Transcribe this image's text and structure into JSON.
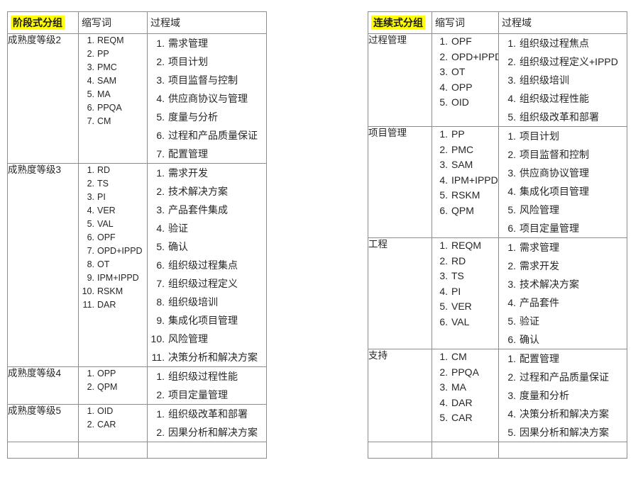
{
  "colors": {
    "highlight_bg": "#ffff00",
    "border": "#8c8c8c",
    "text": "#262626",
    "page_bg": "#ffffff"
  },
  "tables": [
    {
      "id": "staged",
      "headers": {
        "group": "阶段式分组",
        "abbr": "缩写词",
        "areas": "过程域"
      },
      "rows": [
        {
          "group": "成熟度等级2",
          "abbr": [
            "REQM",
            "PP",
            "PMC",
            "SAM",
            "MA",
            "PPQA",
            "CM"
          ],
          "areas": [
            "需求管理",
            "项目计划",
            "项目监督与控制",
            "供应商协议与管理",
            "度量与分析",
            "过程和产品质量保证",
            "配置管理"
          ]
        },
        {
          "group": "成熟度等级3",
          "abbr": [
            "RD",
            "TS",
            "PI",
            "VER",
            "VAL",
            "OPF",
            "OPD+IPPD",
            "OT",
            "IPM+IPPD",
            "RSKM",
            "DAR"
          ],
          "areas": [
            "需求开发",
            "技术解决方案",
            "产品套件集成",
            "验证",
            "确认",
            "组织级过程集点",
            "组织级过程定义",
            "组织级培训",
            "集成化项目管理",
            "风险管理",
            "决策分析和解决方案"
          ]
        },
        {
          "group": "成熟度等级4",
          "abbr": [
            "OPP",
            "QPM"
          ],
          "areas": [
            "组织级过程性能",
            "项目定量管理"
          ]
        },
        {
          "group": "成熟度等级5",
          "abbr": [
            "OID",
            "CAR"
          ],
          "areas": [
            "组织级改革和部署",
            "因果分析和解决方案"
          ]
        },
        {
          "group": "",
          "abbr": [],
          "areas": []
        }
      ]
    },
    {
      "id": "continuous",
      "headers": {
        "group": "连续式分组",
        "abbr": "缩写词",
        "areas": "过程域"
      },
      "rows": [
        {
          "group": "过程管理",
          "abbr": [
            "OPF",
            "OPD+IPPD",
            "OT",
            "OPP",
            "OID"
          ],
          "areas": [
            "组织级过程焦点",
            "组织级过程定义+IPPD",
            "组织级培训",
            "组织级过程性能",
            "组织级改革和部署"
          ]
        },
        {
          "group": "项目管理",
          "abbr": [
            "PP",
            "PMC",
            "SAM",
            "IPM+IPPD",
            "RSKM",
            "QPM"
          ],
          "areas": [
            "项目计划",
            "项目监督和控制",
            "供应商协议管理",
            "集成化项目管理",
            "风险管理",
            "项目定量管理"
          ]
        },
        {
          "group": "工程",
          "abbr": [
            "REQM",
            "RD",
            "TS",
            "PI",
            "VER",
            "VAL"
          ],
          "areas": [
            "需求管理",
            "需求开发",
            "技术解决方案",
            "产品套件",
            "验证",
            "确认"
          ]
        },
        {
          "group": "支持",
          "abbr": [
            "CM",
            "PPQA",
            "MA",
            "DAR",
            "CAR"
          ],
          "areas": [
            "配置管理",
            "过程和产品质量保证",
            "度量和分析",
            "决策分析和解决方案",
            "因果分析和解决方案"
          ]
        },
        {
          "group": "",
          "abbr": [],
          "areas": []
        }
      ]
    }
  ]
}
